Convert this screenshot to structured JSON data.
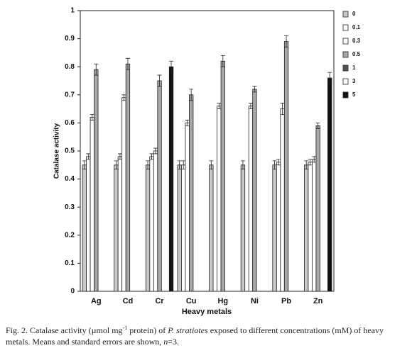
{
  "chart_data": {
    "type": "bar",
    "ylabel": "Catalase activity",
    "xlabel": "Heavy metals",
    "categories": [
      "Ag",
      "Cd",
      "Cr",
      "Cu",
      "Hg",
      "Ni",
      "Pb",
      "Zn"
    ],
    "ylim": [
      0,
      1
    ],
    "yticks": [
      0,
      0.1,
      0.2,
      0.3,
      0.4,
      0.5,
      0.6,
      0.7,
      0.8,
      0.9,
      1
    ],
    "series": [
      {
        "name": "0",
        "color": "#c8c8c8",
        "values": [
          0.45,
          0.45,
          0.45,
          0.45,
          0.45,
          0.45,
          0.45,
          0.45
        ],
        "errors": [
          0.015,
          0.015,
          0.015,
          0.015,
          0.015,
          0.015,
          0.015,
          0.015
        ]
      },
      {
        "name": "0.1",
        "color": "#ffffff",
        "values": [
          0.48,
          0.48,
          0.48,
          0.45,
          null,
          null,
          0.46,
          0.46
        ],
        "errors": [
          0.01,
          0.01,
          0.01,
          0.015,
          null,
          null,
          0.01,
          0.01
        ]
      },
      {
        "name": "0.3",
        "color": "#ffffff",
        "values": [
          0.62,
          0.69,
          0.5,
          0.6,
          0.66,
          0.66,
          0.65,
          0.47
        ],
        "errors": [
          0.01,
          0.01,
          0.01,
          0.01,
          0.01,
          0.01,
          0.02,
          0.01
        ]
      },
      {
        "name": "0.5",
        "color": "#a8a8a8",
        "values": [
          0.79,
          0.81,
          0.75,
          0.7,
          0.82,
          0.72,
          0.89,
          0.59
        ],
        "errors": [
          0.02,
          0.02,
          0.02,
          0.02,
          0.02,
          0.01,
          0.02,
          0.01
        ]
      },
      {
        "name": "1",
        "color": "#555555",
        "values": [
          null,
          null,
          null,
          null,
          null,
          null,
          null,
          null
        ],
        "errors": [
          null,
          null,
          null,
          null,
          null,
          null,
          null,
          null
        ]
      },
      {
        "name": "3",
        "color": "#ffffff",
        "values": [
          null,
          null,
          null,
          null,
          null,
          null,
          null,
          null
        ],
        "errors": [
          null,
          null,
          null,
          null,
          null,
          null,
          null,
          null
        ]
      },
      {
        "name": "5",
        "color": "#111111",
        "values": [
          null,
          null,
          0.8,
          null,
          null,
          null,
          null,
          0.76
        ],
        "errors": [
          null,
          null,
          0.02,
          null,
          null,
          null,
          null,
          0.02
        ]
      }
    ]
  },
  "caption": [
    "Fig. 2. Catalase activity (µmol mg",
    "-1",
    " protein) of ",
    "P. stratiotes",
    " exposed to different concentrations (mM) of heavy metals. Means and standard errors are shown, ",
    "n",
    "=3."
  ]
}
